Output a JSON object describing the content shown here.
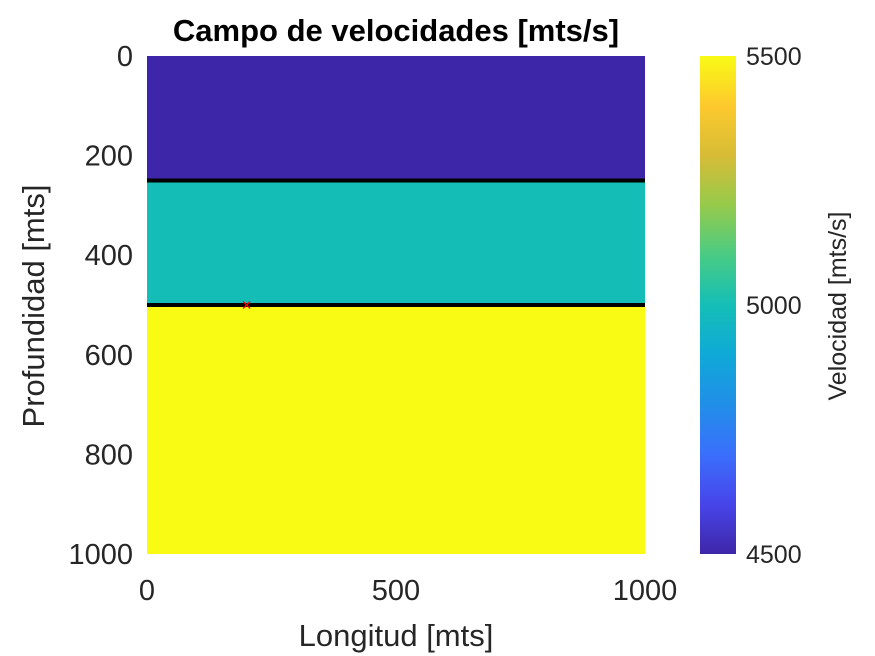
{
  "chart_data": {
    "type": "heatmap",
    "title": "Campo de velocidades [mts/s]",
    "xlabel": "Longitud [mts]",
    "ylabel": "Profundidad [mts]",
    "xlim": [
      0,
      1000
    ],
    "ylim": [
      0,
      1000
    ],
    "y_reversed": true,
    "x_ticks": [
      0,
      500,
      1000
    ],
    "y_ticks": [
      0,
      200,
      400,
      600,
      800,
      1000
    ],
    "layers": [
      {
        "depth_top": 0,
        "depth_bottom": 250,
        "velocity": 4500
      },
      {
        "depth_top": 250,
        "depth_bottom": 500,
        "velocity": 5000
      },
      {
        "depth_top": 500,
        "depth_bottom": 1000,
        "velocity": 5500
      }
    ],
    "interfaces": [
      250,
      500
    ],
    "source_marker": {
      "x": 200,
      "y": 500,
      "symbol": "x",
      "color": "#ff0000"
    },
    "colorbar": {
      "label": "Velocidad [mts/s]",
      "range": [
        4500,
        5500
      ],
      "ticks": [
        4500,
        5000,
        5500
      ],
      "colormap": "parula"
    },
    "grid": false,
    "legend": false
  }
}
